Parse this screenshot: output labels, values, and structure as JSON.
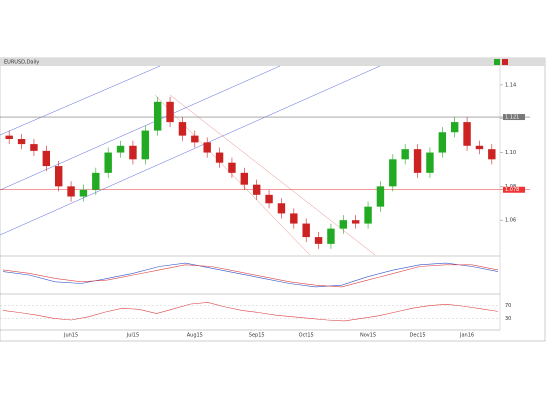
{
  "title": "EURUSD,Daily",
  "chart_data": [
    {
      "type": "candlestick",
      "ylim": [
        1.04,
        1.15
      ],
      "yticks": [
        1.06,
        1.08,
        {
          "value": 1.1,
          "label": "1.10"
        },
        1.12,
        1.14
      ],
      "categories": [
        null,
        null,
        null,
        null,
        null,
        "Jun15",
        null,
        null,
        null,
        null,
        "Jul15",
        null,
        null,
        null,
        null,
        "Aug15",
        null,
        null,
        null,
        null,
        "Sep15",
        null,
        null,
        null,
        "Oct15",
        null,
        null,
        null,
        null,
        "Nov15",
        null,
        null,
        null,
        "Dec15",
        null,
        null,
        null,
        "Jan16",
        null,
        null
      ],
      "open": [
        1.11,
        1.108,
        1.105,
        1.101,
        1.092,
        1.08,
        1.074,
        1.078,
        1.088,
        1.1,
        1.104,
        1.096,
        1.113,
        1.13,
        1.118,
        1.11,
        1.106,
        1.1,
        1.094,
        1.088,
        1.081,
        1.075,
        1.07,
        1.064,
        1.058,
        1.05,
        1.046,
        1.055,
        1.06,
        1.058,
        1.068,
        1.08,
        1.096,
        1.102,
        1.088,
        1.1,
        1.112,
        1.118,
        1.104,
        1.102
      ],
      "high": [
        1.113,
        1.111,
        1.108,
        1.104,
        1.095,
        1.083,
        1.081,
        1.091,
        1.103,
        1.107,
        1.107,
        1.116,
        1.133,
        1.133,
        1.121,
        1.113,
        1.109,
        1.103,
        1.097,
        1.091,
        1.084,
        1.078,
        1.073,
        1.067,
        1.061,
        1.053,
        1.058,
        1.063,
        1.063,
        1.071,
        1.083,
        1.099,
        1.105,
        1.105,
        1.103,
        1.115,
        1.121,
        1.121,
        1.107,
        1.105
      ],
      "low": [
        1.105,
        1.102,
        1.098,
        1.089,
        1.077,
        1.071,
        1.071,
        1.075,
        1.085,
        1.097,
        1.093,
        1.093,
        1.11,
        1.115,
        1.107,
        1.103,
        1.097,
        1.091,
        1.085,
        1.078,
        1.072,
        1.067,
        1.061,
        1.055,
        1.047,
        1.043,
        1.043,
        1.052,
        1.055,
        1.055,
        1.065,
        1.077,
        1.093,
        1.085,
        1.085,
        1.097,
        1.109,
        1.101,
        1.099,
        1.093
      ],
      "close": [
        1.108,
        1.105,
        1.101,
        1.092,
        1.08,
        1.074,
        1.078,
        1.088,
        1.1,
        1.104,
        1.096,
        1.113,
        1.13,
        1.118,
        1.11,
        1.106,
        1.1,
        1.094,
        1.088,
        1.081,
        1.075,
        1.07,
        1.064,
        1.058,
        1.05,
        1.046,
        1.055,
        1.06,
        1.058,
        1.068,
        1.08,
        1.096,
        1.102,
        1.088,
        1.1,
        1.112,
        1.118,
        1.104,
        1.102,
        1.096
      ],
      "up_color": "#22aa22",
      "down_color": "#cc2222",
      "hlines": [
        {
          "value": 1.121,
          "color": "#777777"
        },
        {
          "value": 1.078,
          "color": "#ee3333"
        }
      ]
    },
    {
      "type": "line",
      "ylim": [
        -1,
        1
      ],
      "series": [
        {
          "color": "#3355cc",
          "values": [
            0.2,
            0.0,
            -0.4,
            -0.5,
            -0.2,
            0.1,
            0.5,
            0.7,
            0.4,
            0.1,
            -0.2,
            -0.5,
            -0.7,
            -0.6,
            -0.1,
            0.3,
            0.6,
            0.7,
            0.5,
            0.2
          ]
        },
        {
          "color": "#dd4444",
          "values": [
            0.3,
            0.1,
            -0.2,
            -0.4,
            -0.3,
            0.0,
            0.3,
            0.6,
            0.5,
            0.2,
            -0.1,
            -0.4,
            -0.6,
            -0.7,
            -0.3,
            0.1,
            0.5,
            0.6,
            0.6,
            0.3
          ]
        }
      ]
    },
    {
      "type": "line",
      "ylim": [
        0,
        100
      ],
      "yticks": [
        30,
        70
      ],
      "series": [
        {
          "color": "#dd4444",
          "values": [
            55,
            48,
            40,
            30,
            25,
            35,
            50,
            62,
            58,
            45,
            60,
            75,
            80,
            66,
            55,
            48,
            40,
            35,
            30,
            25,
            22,
            30,
            38,
            50,
            62,
            70,
            74,
            68,
            60,
            52
          ]
        }
      ]
    }
  ]
}
